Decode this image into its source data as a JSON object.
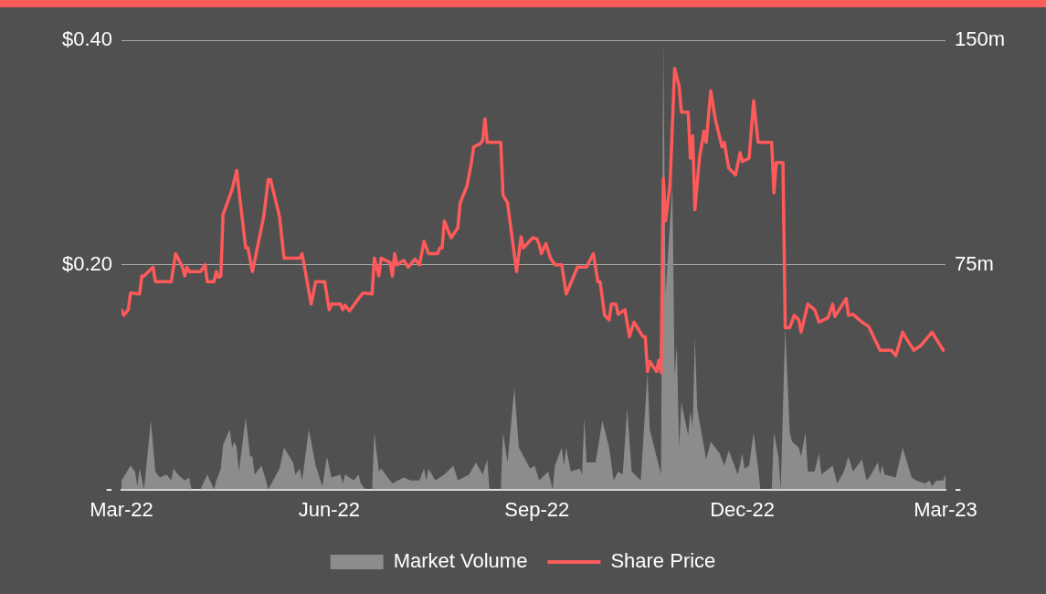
{
  "chart_data": {
    "type": "line",
    "xlim": [
      "2022-03-01",
      "2023-03-01"
    ],
    "xticks": [
      {
        "value": "2022-03-01",
        "label": "Mar-22"
      },
      {
        "value": "2022-06-01",
        "label": "Jun-22"
      },
      {
        "value": "2022-09-01",
        "label": "Sep-22"
      },
      {
        "value": "2022-12-01",
        "label": "Dec-22"
      },
      {
        "value": "2023-03-01",
        "label": "Mar-23"
      }
    ],
    "ylim": [
      0,
      0.4
    ],
    "yticks": [
      {
        "value": 0,
        "label": "-"
      },
      {
        "value": 0.2,
        "label": "$0.20"
      },
      {
        "value": 0.4,
        "label": "$0.40"
      }
    ],
    "y2lim": [
      0,
      150
    ],
    "y2ticks": [
      {
        "value": 0,
        "label": "-"
      },
      {
        "value": 75,
        "label": "75m"
      },
      {
        "value": 150,
        "label": "150m"
      }
    ],
    "grid": "y",
    "legend": "bottom",
    "series": [
      {
        "name": "Market Volume",
        "type": "area",
        "axis": "y2",
        "color": "#8c8c8c",
        "x": [
          "2022-03-01",
          "2022-03-05",
          "2022-03-07",
          "2022-03-08",
          "2022-03-09",
          "2022-03-11",
          "2022-03-14",
          "2022-03-16",
          "2022-03-18",
          "2022-03-21",
          "2022-03-23",
          "2022-03-24",
          "2022-03-26",
          "2022-03-29",
          "2022-03-31",
          "2022-04-01",
          "2022-04-05",
          "2022-04-08",
          "2022-04-11",
          "2022-04-12",
          "2022-04-14",
          "2022-04-15",
          "2022-04-18",
          "2022-04-19",
          "2022-04-20",
          "2022-04-21",
          "2022-04-22",
          "2022-04-25",
          "2022-04-27",
          "2022-04-28",
          "2022-04-29",
          "2022-05-02",
          "2022-05-04",
          "2022-05-05",
          "2022-05-10",
          "2022-05-12",
          "2022-05-16",
          "2022-05-17",
          "2022-05-19",
          "2022-05-20",
          "2022-05-23",
          "2022-05-26",
          "2022-05-29",
          "2022-05-31",
          "2022-06-02",
          "2022-06-06",
          "2022-06-07",
          "2022-06-08",
          "2022-06-12",
          "2022-06-14",
          "2022-06-15",
          "2022-06-17",
          "2022-06-20",
          "2022-06-21",
          "2022-06-23",
          "2022-06-24",
          "2022-06-28",
          "2022-06-29",
          "2022-07-04",
          "2022-07-07",
          "2022-07-11",
          "2022-07-13",
          "2022-07-14",
          "2022-07-15",
          "2022-07-18",
          "2022-07-22",
          "2022-07-26",
          "2022-07-28",
          "2022-08-02",
          "2022-08-05",
          "2022-08-08",
          "2022-08-10",
          "2022-08-11",
          "2022-08-16",
          "2022-08-17",
          "2022-08-19",
          "2022-08-22",
          "2022-08-24",
          "2022-08-29",
          "2022-08-31",
          "2022-09-02",
          "2022-09-06",
          "2022-09-08",
          "2022-09-09",
          "2022-09-12",
          "2022-09-13",
          "2022-09-14",
          "2022-09-16",
          "2022-09-20",
          "2022-09-21",
          "2022-09-22",
          "2022-09-23",
          "2022-09-27",
          "2022-09-30",
          "2022-10-03",
          "2022-10-05",
          "2022-10-07",
          "2022-10-09",
          "2022-10-11",
          "2022-10-13",
          "2022-10-17",
          "2022-10-20",
          "2022-10-21",
          "2022-10-26",
          "2022-10-27",
          "2022-10-28",
          "2022-10-31",
          "2022-11-01",
          "2022-11-02",
          "2022-11-03",
          "2022-11-04",
          "2022-11-07",
          "2022-11-08",
          "2022-11-09",
          "2022-11-10",
          "2022-11-11",
          "2022-11-15",
          "2022-11-17",
          "2022-11-21",
          "2022-11-23",
          "2022-11-25",
          "2022-11-29",
          "2022-12-01",
          "2022-12-02",
          "2022-12-04",
          "2022-12-06",
          "2022-12-08",
          "2022-12-09",
          "2022-12-14",
          "2022-12-15",
          "2022-12-17",
          "2022-12-18",
          "2022-12-20",
          "2022-12-22",
          "2022-12-23",
          "2022-12-26",
          "2022-12-27",
          "2022-12-29",
          "2022-12-30",
          "2023-01-02",
          "2023-01-04",
          "2023-01-05",
          "2023-01-10",
          "2023-01-12",
          "2023-01-15",
          "2023-01-17",
          "2023-01-19",
          "2023-01-23",
          "2023-01-25",
          "2023-01-27",
          "2023-01-30",
          "2023-01-31",
          "2023-02-01",
          "2023-02-02",
          "2023-02-07",
          "2023-02-10",
          "2023-02-14",
          "2023-02-16",
          "2023-02-20",
          "2023-02-22",
          "2023-02-23",
          "2023-02-25",
          "2023-02-28",
          "2023-03-01"
        ],
        "values": [
          3,
          8,
          6,
          1,
          7,
          0,
          23,
          6,
          4,
          5,
          3,
          7,
          5,
          3,
          4,
          0,
          0,
          5,
          0,
          3,
          7,
          15,
          20,
          14,
          16,
          14,
          6,
          24,
          11,
          11,
          5,
          8,
          3,
          0,
          7,
          14,
          9,
          5,
          7,
          3,
          20,
          8,
          1,
          11,
          4,
          5,
          2,
          5,
          3,
          5,
          2,
          0,
          0,
          19,
          6,
          7,
          3,
          2,
          4,
          3,
          3,
          7,
          3,
          7,
          3,
          5,
          8,
          3,
          5,
          9,
          5,
          10,
          0,
          0,
          19,
          9,
          34,
          14,
          7,
          8,
          3,
          6,
          0,
          8,
          14,
          8,
          14,
          6,
          7,
          5,
          24,
          9,
          9,
          23,
          14,
          3,
          6,
          5,
          27,
          6,
          3,
          39,
          20,
          5,
          150,
          65,
          102,
          38,
          48,
          14,
          29,
          18,
          26,
          21,
          51,
          27,
          10,
          16,
          12,
          8,
          13,
          5,
          12,
          7,
          8,
          19,
          7,
          0,
          0,
          19,
          11,
          0,
          54,
          19,
          16,
          14,
          11,
          19,
          6,
          6,
          12,
          5,
          8,
          2,
          6,
          11,
          6,
          10,
          3,
          5,
          9,
          5,
          8,
          5,
          4,
          14,
          4,
          3,
          2,
          3,
          1,
          3,
          3,
          5
        ]
      },
      {
        "name": "Share Price",
        "axis": "y",
        "color": "#ff5a5a",
        "x": [
          "2022-03-01",
          "2022-03-02",
          "2022-03-04",
          "2022-03-05",
          "2022-03-09",
          "2022-03-10",
          "2022-03-11",
          "2022-03-15",
          "2022-03-16",
          "2022-03-23",
          "2022-03-25",
          "2022-03-28",
          "2022-03-29",
          "2022-03-30",
          "2022-03-31",
          "2022-04-05",
          "2022-04-07",
          "2022-04-08",
          "2022-04-11",
          "2022-04-12",
          "2022-04-13",
          "2022-04-14",
          "2022-04-15",
          "2022-04-19",
          "2022-04-21",
          "2022-04-25",
          "2022-04-26",
          "2022-04-28",
          "2022-05-03",
          "2022-05-05",
          "2022-05-06",
          "2022-05-10",
          "2022-05-12",
          "2022-05-19",
          "2022-05-20",
          "2022-05-24",
          "2022-05-26",
          "2022-05-30",
          "2022-06-01",
          "2022-06-02",
          "2022-06-06",
          "2022-06-07",
          "2022-06-08",
          "2022-06-10",
          "2022-06-14",
          "2022-06-16",
          "2022-06-20",
          "2022-06-21",
          "2022-06-23",
          "2022-06-24",
          "2022-06-28",
          "2022-06-29",
          "2022-06-30",
          "2022-07-01",
          "2022-07-04",
          "2022-07-06",
          "2022-07-09",
          "2022-07-11",
          "2022-07-13",
          "2022-07-15",
          "2022-07-19",
          "2022-07-20",
          "2022-07-21",
          "2022-07-22",
          "2022-07-25",
          "2022-07-28",
          "2022-07-29",
          "2022-08-01",
          "2022-08-03",
          "2022-08-04",
          "2022-08-07",
          "2022-08-08",
          "2022-08-09",
          "2022-08-10",
          "2022-08-16",
          "2022-08-17",
          "2022-08-19",
          "2022-08-23",
          "2022-08-25",
          "2022-08-26",
          "2022-08-30",
          "2022-09-01",
          "2022-09-02",
          "2022-09-03",
          "2022-09-05",
          "2022-09-07",
          "2022-09-09",
          "2022-09-12",
          "2022-09-14",
          "2022-09-19",
          "2022-09-23",
          "2022-09-26",
          "2022-09-28",
          "2022-09-29",
          "2022-10-01",
          "2022-10-03",
          "2022-10-04",
          "2022-10-06",
          "2022-10-07",
          "2022-10-10",
          "2022-10-12",
          "2022-10-14",
          "2022-10-18",
          "2022-10-19",
          "2022-10-20",
          "2022-10-21",
          "2022-10-24",
          "2022-10-25",
          "2022-10-26",
          "2022-10-27",
          "2022-10-28",
          "2022-10-30",
          "2022-11-01",
          "2022-11-03",
          "2022-11-04",
          "2022-11-07",
          "2022-11-08",
          "2022-11-09",
          "2022-11-10",
          "2022-11-12",
          "2022-11-14",
          "2022-11-15",
          "2022-11-17",
          "2022-11-19",
          "2022-11-22",
          "2022-11-23",
          "2022-11-25",
          "2022-11-28",
          "2022-11-30",
          "2022-12-01",
          "2022-12-04",
          "2022-12-06",
          "2022-12-08",
          "2022-12-14",
          "2022-12-15",
          "2022-12-16",
          "2022-12-19",
          "2022-12-20",
          "2022-12-22",
          "2022-12-24",
          "2022-12-26",
          "2022-12-27",
          "2022-12-30",
          "2023-01-02",
          "2023-01-04",
          "2023-01-08",
          "2023-01-10",
          "2023-01-11",
          "2023-01-16",
          "2023-01-17",
          "2023-01-19",
          "2023-01-23",
          "2023-01-26",
          "2023-01-31",
          "2023-02-05",
          "2023-02-07",
          "2023-02-10",
          "2023-02-13",
          "2023-02-15",
          "2023-02-18",
          "2023-02-23",
          "2023-02-28"
        ],
        "values": [
          0.16,
          0.155,
          0.16,
          0.175,
          0.174,
          0.19,
          0.19,
          0.198,
          0.185,
          0.185,
          0.21,
          0.198,
          0.19,
          0.198,
          0.194,
          0.194,
          0.2,
          0.185,
          0.185,
          0.194,
          0.189,
          0.19,
          0.245,
          0.267,
          0.284,
          0.215,
          0.215,
          0.194,
          0.243,
          0.276,
          0.276,
          0.243,
          0.206,
          0.206,
          0.21,
          0.165,
          0.185,
          0.185,
          0.16,
          0.165,
          0.165,
          0.16,
          0.164,
          0.159,
          0.17,
          0.175,
          0.174,
          0.206,
          0.19,
          0.206,
          0.202,
          0.19,
          0.21,
          0.2,
          0.204,
          0.198,
          0.205,
          0.2,
          0.221,
          0.21,
          0.21,
          0.215,
          0.215,
          0.239,
          0.224,
          0.233,
          0.255,
          0.27,
          0.291,
          0.305,
          0.308,
          0.311,
          0.33,
          0.309,
          0.309,
          0.262,
          0.255,
          0.194,
          0.225,
          0.215,
          0.224,
          0.223,
          0.218,
          0.21,
          0.219,
          0.206,
          0.2,
          0.2,
          0.174,
          0.198,
          0.198,
          0.21,
          0.185,
          0.185,
          0.155,
          0.151,
          0.165,
          0.165,
          0.156,
          0.16,
          0.136,
          0.149,
          0.136,
          0.136,
          0.105,
          0.114,
          0.105,
          0.115,
          0.104,
          0.277,
          0.239,
          0.272,
          0.375,
          0.359,
          0.336,
          0.336,
          0.295,
          0.315,
          0.249,
          0.295,
          0.319,
          0.309,
          0.355,
          0.33,
          0.305,
          0.309,
          0.286,
          0.28,
          0.3,
          0.292,
          0.295,
          0.346,
          0.309,
          0.309,
          0.264,
          0.291,
          0.291,
          0.144,
          0.144,
          0.155,
          0.151,
          0.14,
          0.165,
          0.16,
          0.149,
          0.153,
          0.165,
          0.154,
          0.17,
          0.155,
          0.156,
          0.149,
          0.145,
          0.124,
          0.124,
          0.119,
          0.14,
          0.13,
          0.124,
          0.128,
          0.14,
          0.124
        ]
      }
    ]
  }
}
